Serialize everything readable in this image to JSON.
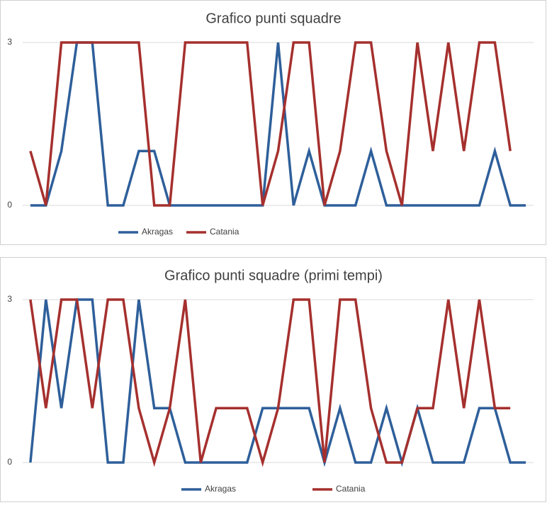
{
  "chart_data": [
    {
      "type": "line",
      "title": "Grafico punti squadre",
      "ylim": [
        0,
        3
      ],
      "yticks": [
        0,
        3
      ],
      "grid": true,
      "series": [
        {
          "name": "Akragas",
          "color": "#2e5f9a",
          "values": [
            0,
            0,
            1,
            3,
            3,
            0,
            0,
            1,
            1,
            0,
            0,
            0,
            0,
            0,
            0,
            0,
            3,
            0,
            1,
            0,
            0,
            0,
            1,
            0,
            0,
            0,
            0,
            0,
            0,
            0,
            1,
            0,
            0
          ]
        },
        {
          "name": "Catania",
          "color": "#a5302e",
          "values": [
            1,
            0,
            3,
            3,
            3,
            3,
            3,
            3,
            0,
            0,
            3,
            3,
            3,
            3,
            3,
            0,
            1,
            3,
            3,
            0,
            1,
            3,
            3,
            1,
            0,
            3,
            1,
            3,
            1,
            3,
            3,
            1,
            null
          ]
        }
      ]
    },
    {
      "type": "line",
      "title": "Grafico punti squadre (primi tempi)",
      "ylim": [
        0,
        3
      ],
      "yticks": [
        0,
        3
      ],
      "grid": true,
      "series": [
        {
          "name": "Akragas",
          "color": "#2e5f9a",
          "values": [
            0,
            3,
            1,
            3,
            3,
            0,
            0,
            3,
            1,
            1,
            0,
            0,
            0,
            0,
            0,
            1,
            1,
            1,
            1,
            0,
            1,
            0,
            0,
            1,
            0,
            1,
            0,
            0,
            0,
            1,
            1,
            0,
            0
          ]
        },
        {
          "name": "Catania",
          "color": "#a5302e",
          "values": [
            3,
            1,
            3,
            3,
            1,
            3,
            3,
            1,
            0,
            1,
            3,
            0,
            1,
            1,
            1,
            0,
            1,
            3,
            3,
            0,
            3,
            3,
            1,
            0,
            0,
            1,
            1,
            3,
            1,
            3,
            1,
            1,
            null
          ]
        }
      ]
    }
  ]
}
